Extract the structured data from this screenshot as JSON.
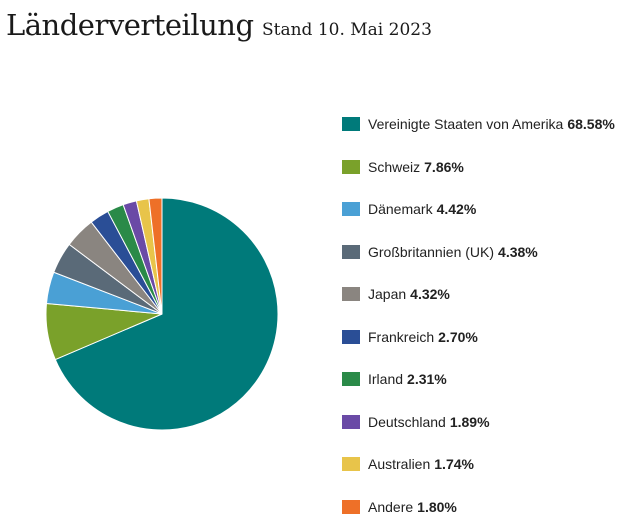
{
  "header": {
    "title": "Länderverteilung",
    "subtitle": "Stand 10. Mai 2023"
  },
  "chart_data": {
    "type": "pie",
    "title": "Länderverteilung",
    "subtitle": "Stand 10. Mai 2023",
    "legend_position": "right",
    "slices": [
      {
        "label": "Vereinigte Staaten von Amerika",
        "value": 68.58,
        "value_text": "68.58%",
        "color": "#007a7a"
      },
      {
        "label": "Schweiz",
        "value": 7.86,
        "value_text": "7.86%",
        "color": "#7aa12a"
      },
      {
        "label": "Dänemark",
        "value": 4.42,
        "value_text": "4.42%",
        "color": "#4aa0d5"
      },
      {
        "label": "Großbritannien (UK)",
        "value": 4.38,
        "value_text": "4.38%",
        "color": "#5a6a78"
      },
      {
        "label": "Japan",
        "value": 4.32,
        "value_text": "4.32%",
        "color": "#8a8580"
      },
      {
        "label": "Frankreich",
        "value": 2.7,
        "value_text": "2.70%",
        "color": "#2a4e96"
      },
      {
        "label": "Irland",
        "value": 2.31,
        "value_text": "2.31%",
        "color": "#2a8a48"
      },
      {
        "label": "Deutschland",
        "value": 1.89,
        "value_text": "1.89%",
        "color": "#6a4aa6"
      },
      {
        "label": "Australien",
        "value": 1.74,
        "value_text": "1.74%",
        "color": "#e8c44a"
      },
      {
        "label": "Andere",
        "value": 1.8,
        "value_text": "1.80%",
        "color": "#ee7028"
      }
    ]
  }
}
